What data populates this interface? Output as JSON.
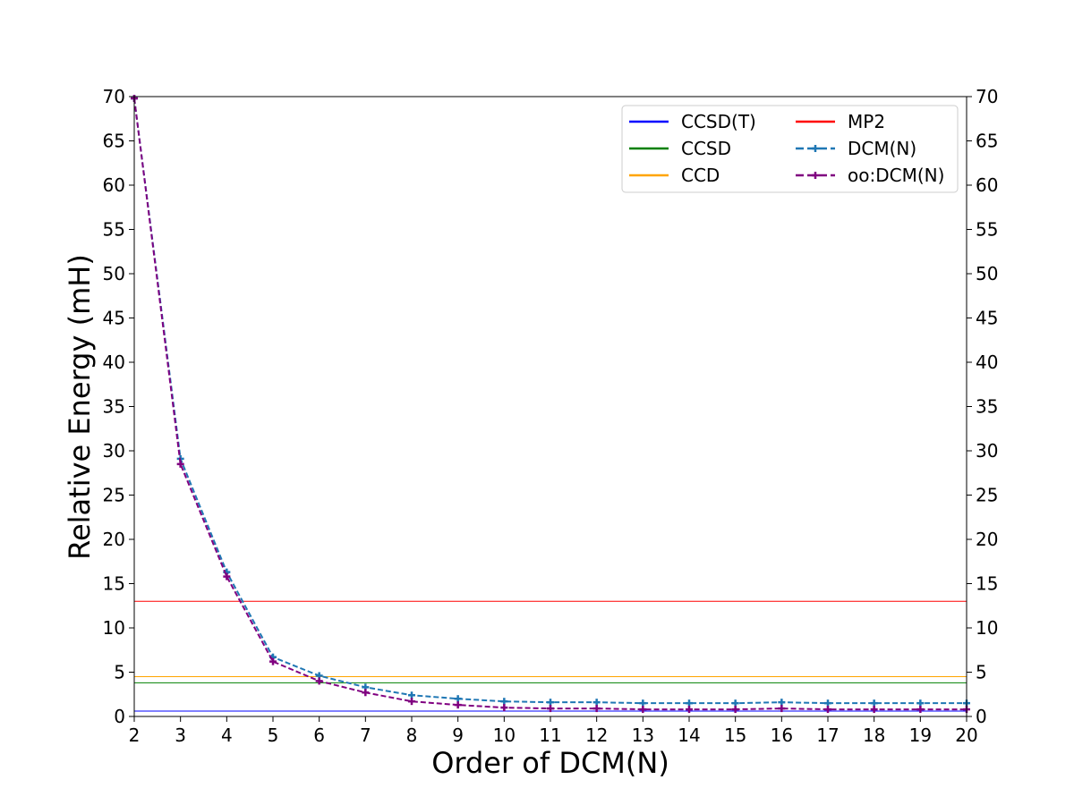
{
  "chart_data": {
    "type": "line",
    "title": "",
    "xlabel": "Order of DCM(N)",
    "ylabel": "Relative Energy (mH)",
    "xlim": [
      2,
      20
    ],
    "ylim": [
      0,
      70
    ],
    "x_ticks": [
      "2",
      "3",
      "4",
      "5",
      "6",
      "7",
      "8",
      "9",
      "10",
      "11",
      "12",
      "13",
      "14",
      "15",
      "16",
      "17",
      "18",
      "19",
      "20"
    ],
    "y_ticks": [
      "0",
      "5",
      "10",
      "15",
      "20",
      "25",
      "30",
      "35",
      "40",
      "45",
      "50",
      "55",
      "60",
      "65",
      "70"
    ],
    "right_y_ticks": [
      "0",
      "5",
      "10",
      "15",
      "20",
      "25",
      "30",
      "35",
      "40",
      "45",
      "50",
      "55",
      "60",
      "65",
      "70"
    ],
    "grid": false,
    "legend_position": "top-right",
    "reference_lines": [
      {
        "name": "CCSD(T)",
        "value": 0.6,
        "color": "#0000ff"
      },
      {
        "name": "CCSD",
        "value": 3.8,
        "color": "#008000"
      },
      {
        "name": "CCD",
        "value": 4.5,
        "color": "#ffa500"
      },
      {
        "name": "MP2",
        "value": 13.0,
        "color": "#ff0000"
      }
    ],
    "x": [
      2,
      3,
      4,
      5,
      6,
      7,
      8,
      9,
      10,
      11,
      12,
      13,
      14,
      15,
      16,
      17,
      18,
      19,
      20
    ],
    "series": [
      {
        "name": "DCM(N)",
        "color": "#1f77b4",
        "style": "dashed",
        "marker": "plus",
        "values": [
          69.8,
          29.1,
          16.3,
          6.7,
          4.6,
          3.3,
          2.4,
          2.0,
          1.7,
          1.6,
          1.6,
          1.5,
          1.5,
          1.5,
          1.6,
          1.5,
          1.5,
          1.5,
          1.5
        ]
      },
      {
        "name": "oo:DCM(N)",
        "color": "#800080",
        "style": "dashed",
        "marker": "plus",
        "values": [
          69.8,
          28.5,
          15.8,
          6.2,
          4.0,
          2.7,
          1.7,
          1.3,
          1.0,
          0.9,
          0.9,
          0.8,
          0.8,
          0.8,
          0.9,
          0.8,
          0.8,
          0.8,
          0.8
        ]
      }
    ],
    "legend": [
      {
        "name": "CCSD(T)",
        "color": "#0000ff",
        "style": "solid"
      },
      {
        "name": "CCSD",
        "color": "#008000",
        "style": "solid"
      },
      {
        "name": "CCD",
        "color": "#ffa500",
        "style": "solid"
      },
      {
        "name": "MP2",
        "color": "#ff0000",
        "style": "solid"
      },
      {
        "name": "DCM(N)",
        "color": "#1f77b4",
        "style": "dashed"
      },
      {
        "name": "oo:DCM(N)",
        "color": "#800080",
        "style": "dashed"
      }
    ]
  }
}
